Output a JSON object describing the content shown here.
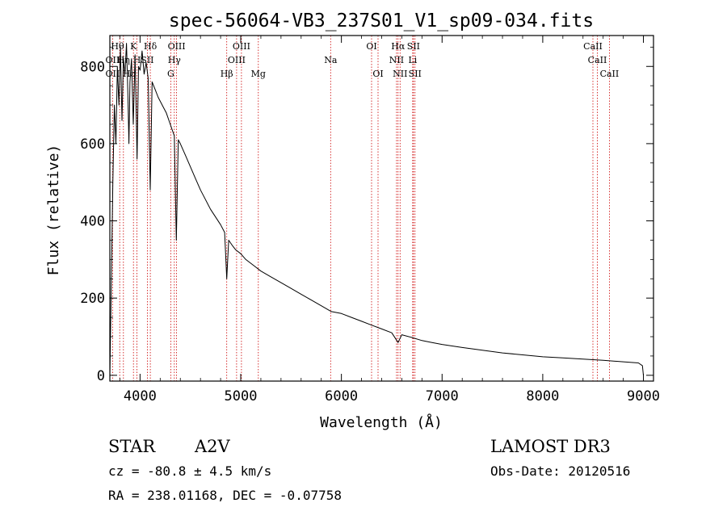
{
  "chart_data": {
    "type": "line",
    "title": "spec-56064-VB3_237S01_V1_sp09-034.fits",
    "xlabel": "Wavelength (Å)",
    "ylabel": "Flux (relative)",
    "xlim": [
      3700,
      9100
    ],
    "ylim": [
      -15,
      880
    ],
    "xticks": [
      4000,
      5000,
      6000,
      7000,
      8000,
      9000
    ],
    "yticks": [
      0,
      200,
      400,
      600,
      800
    ],
    "grid": false,
    "series": [
      {
        "name": "spectrum",
        "x": [
          3700,
          3715,
          3730,
          3745,
          3760,
          3775,
          3790,
          3805,
          3820,
          3835,
          3850,
          3865,
          3880,
          3889,
          3900,
          3915,
          3933,
          3950,
          3970,
          3985,
          4000,
          4020,
          4040,
          4060,
          4080,
          4101,
          4120,
          4150,
          4180,
          4220,
          4260,
          4300,
          4340,
          4360,
          4380,
          4400,
          4450,
          4500,
          4550,
          4600,
          4650,
          4700,
          4750,
          4800,
          4840,
          4861,
          4880,
          4920,
          4950,
          5000,
          5050,
          5100,
          5150,
          5200,
          5300,
          5400,
          5500,
          5600,
          5700,
          5800,
          5900,
          6000,
          6100,
          6200,
          6300,
          6400,
          6500,
          6563,
          6600,
          6700,
          6800,
          6900,
          7000,
          7200,
          7400,
          7600,
          7800,
          8000,
          8200,
          8400,
          8600,
          8800,
          8950,
          8990,
          9000
        ],
        "y": [
          0,
          250,
          500,
          700,
          600,
          800,
          700,
          850,
          660,
          820,
          780,
          860,
          720,
          600,
          760,
          820,
          650,
          830,
          560,
          800,
          790,
          840,
          780,
          810,
          770,
          480,
          760,
          740,
          720,
          700,
          680,
          650,
          620,
          350,
          610,
          600,
          570,
          540,
          510,
          480,
          455,
          430,
          410,
          390,
          370,
          250,
          350,
          335,
          325,
          315,
          300,
          290,
          280,
          270,
          255,
          240,
          225,
          210,
          195,
          180,
          165,
          160,
          150,
          140,
          130,
          120,
          110,
          85,
          105,
          98,
          90,
          85,
          80,
          72,
          65,
          58,
          53,
          48,
          45,
          42,
          39,
          35,
          32,
          25,
          0
        ]
      }
    ],
    "lines": [
      {
        "name": "Hθ",
        "x": 3798
      },
      {
        "name": "Hη",
        "x": 3835
      },
      {
        "name": "CaII K",
        "x": 3934
      },
      {
        "name": "CaII H",
        "x": 3969
      },
      {
        "name": "Hδ",
        "x": 4102
      },
      {
        "name": "SII",
        "x": 4072
      },
      {
        "name": "OII",
        "x": 3727
      },
      {
        "name": "OIII",
        "x": 4363
      },
      {
        "name": "Hγ",
        "x": 4340
      },
      {
        "name": "G",
        "x": 4305
      },
      {
        "name": "Hβ",
        "x": 4861
      },
      {
        "name": "OIII",
        "x": 4959
      },
      {
        "name": "OIII",
        "x": 5007
      },
      {
        "name": "Mg",
        "x": 5175
      },
      {
        "name": "Na",
        "x": 5893
      },
      {
        "name": "OI",
        "x": 6300
      },
      {
        "name": "OI",
        "x": 6364
      },
      {
        "name": "NII",
        "x": 6548
      },
      {
        "name": "Hα",
        "x": 6563
      },
      {
        "name": "NII",
        "x": 6583
      },
      {
        "name": "Li",
        "x": 6708
      },
      {
        "name": "SII",
        "x": 6716
      },
      {
        "name": "SII",
        "x": 6731
      },
      {
        "name": "CaII",
        "x": 8498
      },
      {
        "name": "CaII",
        "x": 8542
      },
      {
        "name": "CaII",
        "x": 8662
      }
    ],
    "labels": [
      {
        "text": "Hθ",
        "x": 3776,
        "row": 0,
        "greek": true
      },
      {
        "text": "K",
        "x": 3934,
        "row": 0
      },
      {
        "text": "Hδ",
        "x": 4102,
        "row": 0,
        "greek": true
      },
      {
        "text": "OIII",
        "x": 4363,
        "row": 0
      },
      {
        "text": "OIII",
        "x": 5007,
        "row": 0
      },
      {
        "text": "OI",
        "x": 6300,
        "row": 0
      },
      {
        "text": "Hα",
        "x": 6563,
        "row": 0,
        "greek": true
      },
      {
        "text": "SII",
        "x": 6716,
        "row": 0
      },
      {
        "text": "CaII",
        "x": 8498,
        "row": 0
      },
      {
        "text": "OII",
        "x": 3727,
        "row": 1
      },
      {
        "text": "Hη",
        "x": 3835,
        "row": 1,
        "greek": true
      },
      {
        "text": "H",
        "x": 3969,
        "row": 1
      },
      {
        "text": "SII",
        "x": 4072,
        "row": 1
      },
      {
        "text": "Hγ",
        "x": 4340,
        "row": 1,
        "greek": true
      },
      {
        "text": "OIII",
        "x": 4959,
        "row": 1
      },
      {
        "text": "Na",
        "x": 5893,
        "row": 1
      },
      {
        "text": "NII",
        "x": 6548,
        "row": 1
      },
      {
        "text": "Li",
        "x": 6708,
        "row": 1
      },
      {
        "text": "CaII",
        "x": 8542,
        "row": 1
      },
      {
        "text": "OII",
        "x": 3727,
        "row": 2
      },
      {
        "text": "Hε",
        "x": 3889,
        "row": 2,
        "greek": true
      },
      {
        "text": "G",
        "x": 4305,
        "row": 2
      },
      {
        "text": "Hβ",
        "x": 4861,
        "row": 2,
        "greek": true
      },
      {
        "text": "Mg",
        "x": 5175,
        "row": 2
      },
      {
        "text": "OI",
        "x": 6364,
        "row": 2
      },
      {
        "text": "NII",
        "x": 6583,
        "row": 2
      },
      {
        "text": "SII",
        "x": 6731,
        "row": 2
      },
      {
        "text": "CaII",
        "x": 8662,
        "row": 2
      }
    ],
    "colors": {
      "spectrum": "#000000",
      "lines": "#cc0000",
      "axes": "#000000"
    }
  },
  "info": {
    "object_class": "STAR",
    "subclass": "A2V",
    "survey": "LAMOST DR3",
    "cz": "cz = -80.8 ± 4.5 km/s",
    "obs_date": "Obs-Date: 20120516",
    "coords": "RA = 238.01168, DEC =  -0.07758"
  }
}
